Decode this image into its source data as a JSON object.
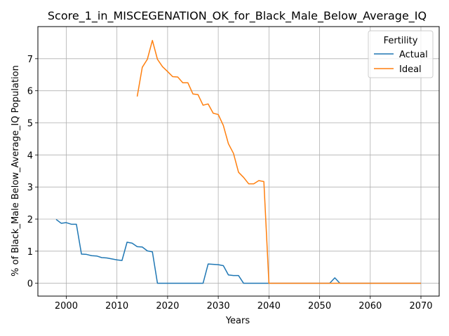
{
  "chart_data": {
    "type": "line",
    "title": "Score_1_in_MISCEGENATION_OK_for_Black_Male_Below_Average_IQ",
    "xlabel": "Years",
    "ylabel": "% of Black_Male Below_Average_IQ Population",
    "xlim": [
      1994.4,
      2073.6
    ],
    "ylim": [
      -0.4,
      8.0
    ],
    "xticks": [
      2000,
      2010,
      2020,
      2030,
      2040,
      2050,
      2060,
      2070
    ],
    "yticks": [
      0,
      1,
      2,
      3,
      4,
      5,
      6,
      7
    ],
    "grid": true,
    "legend": {
      "title": "Fertility",
      "placement": "top-right"
    },
    "series": [
      {
        "name": "Actual",
        "color": "#1f77b4",
        "x": [
          1998,
          1999,
          2000,
          2001,
          2002,
          2003,
          2004,
          2005,
          2006,
          2007,
          2008,
          2009,
          2010,
          2011,
          2012,
          2013,
          2014,
          2015,
          2016,
          2017,
          2018,
          2019,
          2020,
          2021,
          2022,
          2023,
          2024,
          2025,
          2026,
          2027,
          2028,
          2029,
          2030,
          2031,
          2032,
          2033,
          2034,
          2035,
          2036,
          2037,
          2038,
          2039,
          2040,
          2041,
          2042,
          2043,
          2044,
          2045,
          2046,
          2047,
          2048,
          2049,
          2050,
          2051,
          2052,
          2053,
          2054,
          2055,
          2056,
          2057,
          2058,
          2059,
          2060,
          2061,
          2062,
          2063,
          2064,
          2065,
          2066,
          2067,
          2068,
          2069,
          2070
        ],
        "y": [
          1.99,
          1.87,
          1.89,
          1.84,
          1.84,
          0.91,
          0.9,
          0.86,
          0.85,
          0.8,
          0.79,
          0.76,
          0.73,
          0.71,
          1.28,
          1.25,
          1.14,
          1.13,
          1.01,
          0.98,
          0.0,
          0.0,
          0.0,
          0.0,
          0.0,
          0.0,
          0.0,
          0.0,
          0.0,
          0.0,
          0.6,
          0.59,
          0.58,
          0.55,
          0.26,
          0.24,
          0.24,
          0.0,
          0.0,
          0.0,
          0.0,
          0.0,
          0.0,
          0.0,
          0.0,
          0.0,
          0.0,
          0.0,
          0.0,
          0.0,
          0.0,
          0.0,
          0.0,
          0.0,
          0.0,
          0.17,
          0.0,
          0.0,
          0.0,
          0.0,
          0.0,
          0.0,
          0.0,
          0.0,
          0.0,
          0.0,
          0.0,
          0.0,
          0.0,
          0.0,
          0.0,
          0.0,
          0.0
        ]
      },
      {
        "name": "Ideal",
        "color": "#ff7f0e",
        "x": [
          2014,
          2015,
          2016,
          2017,
          2018,
          2019,
          2020,
          2021,
          2022,
          2023,
          2024,
          2025,
          2026,
          2027,
          2028,
          2029,
          2030,
          2031,
          2032,
          2033,
          2034,
          2035,
          2036,
          2037,
          2038,
          2039,
          2040,
          2041,
          2042,
          2043,
          2044,
          2045,
          2046,
          2047,
          2048,
          2049,
          2050,
          2051,
          2052,
          2053,
          2054,
          2055,
          2056,
          2057,
          2058,
          2059,
          2060,
          2061,
          2062,
          2063,
          2064,
          2065,
          2066,
          2067,
          2068,
          2069,
          2070
        ],
        "y": [
          5.82,
          6.73,
          6.98,
          7.57,
          6.98,
          6.75,
          6.6,
          6.44,
          6.43,
          6.25,
          6.25,
          5.9,
          5.88,
          5.55,
          5.59,
          5.3,
          5.26,
          4.92,
          4.35,
          4.05,
          3.46,
          3.3,
          3.1,
          3.1,
          3.2,
          3.17,
          0.0,
          0.0,
          0.0,
          0.0,
          0.0,
          0.0,
          0.0,
          0.0,
          0.0,
          0.0,
          0.0,
          0.0,
          0.0,
          0.0,
          0.0,
          0.0,
          0.0,
          0.0,
          0.0,
          0.0,
          0.0,
          0.0,
          0.0,
          0.0,
          0.0,
          0.0,
          0.0,
          0.0,
          0.0,
          0.0,
          0.0
        ]
      }
    ]
  }
}
